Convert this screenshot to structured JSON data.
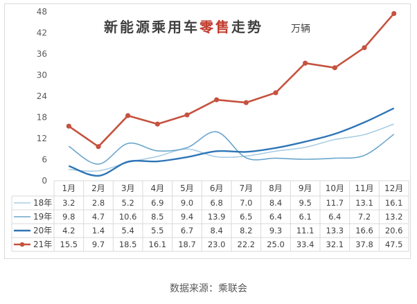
{
  "chart_data": {
    "type": "line",
    "title_parts": [
      {
        "text": "新能源乘用车",
        "color": "#404040"
      },
      {
        "text": "零售",
        "color": "#c0392b"
      },
      {
        "text": "走势",
        "color": "#404040"
      }
    ],
    "unit": "万辆",
    "categories": [
      "1月",
      "2月",
      "3月",
      "4月",
      "5月",
      "6月",
      "7月",
      "8月",
      "9月",
      "10月",
      "11月",
      "12月"
    ],
    "ylim": [
      0,
      48
    ],
    "yticks": [
      0,
      6,
      12,
      18,
      24,
      30,
      36,
      42,
      48
    ],
    "grid": false,
    "legend_placement": "data-table",
    "series": [
      {
        "name": "18年",
        "color": "#a9cde4",
        "width": 1.6,
        "marker": false,
        "values": [
          3.2,
          2.8,
          5.2,
          6.9,
          9.0,
          6.8,
          7.0,
          8.4,
          9.5,
          11.7,
          13.1,
          16.1
        ]
      },
      {
        "name": "19年",
        "color": "#6aa6cc",
        "width": 1.6,
        "marker": false,
        "values": [
          9.8,
          4.7,
          10.6,
          8.5,
          9.4,
          13.9,
          6.5,
          6.4,
          6.1,
          6.4,
          7.2,
          13.2
        ]
      },
      {
        "name": "20年",
        "color": "#2e75b6",
        "width": 2.4,
        "marker": false,
        "values": [
          4.2,
          1.4,
          5.4,
          5.5,
          6.7,
          8.4,
          8.2,
          9.3,
          11.1,
          13.3,
          16.6,
          20.6
        ]
      },
      {
        "name": "21年",
        "color": "#c5523f",
        "width": 2.6,
        "marker": true,
        "values": [
          15.5,
          9.7,
          18.5,
          16.1,
          18.7,
          23.0,
          22.2,
          25.0,
          33.4,
          32.1,
          37.8,
          47.5
        ]
      }
    ]
  },
  "source_note": "数据来源：乘联会"
}
